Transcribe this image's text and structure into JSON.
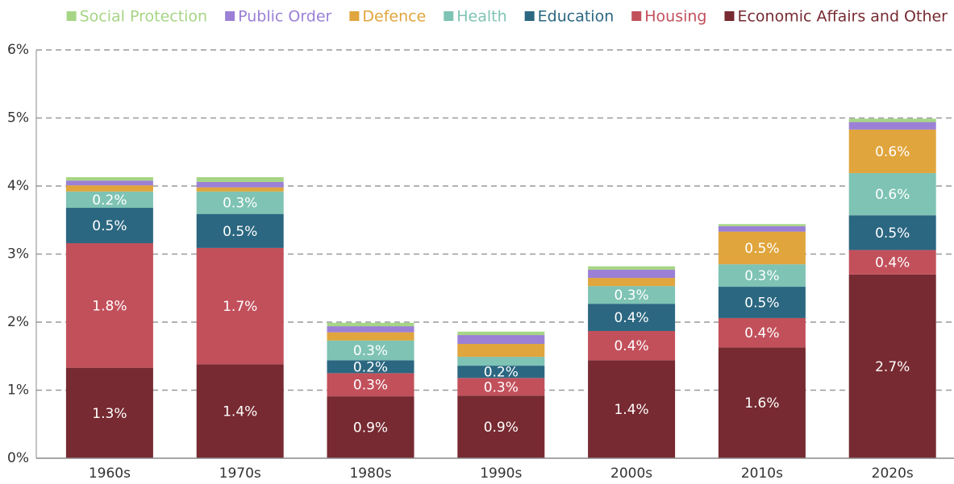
{
  "chart_data": {
    "type": "stacked_bar",
    "categories": [
      "1960s",
      "1970s",
      "1980s",
      "1990s",
      "2000s",
      "2010s",
      "2020s"
    ],
    "series": [
      {
        "name": "Economic Affairs and Other",
        "color": "#772a31",
        "values": [
          1.33,
          1.38,
          0.91,
          0.92,
          1.44,
          1.63,
          2.7
        ],
        "value_labels": [
          "1.3%",
          "1.4%",
          "0.9%",
          "0.9%",
          "1.4%",
          "1.6%",
          "2.7%"
        ]
      },
      {
        "name": "Housing",
        "color": "#c2505b",
        "values": [
          1.83,
          1.71,
          0.34,
          0.26,
          0.43,
          0.43,
          0.36
        ],
        "value_labels": [
          "1.8%",
          "1.7%",
          "0.3%",
          "0.3%",
          "0.4%",
          "0.4%",
          "0.4%"
        ]
      },
      {
        "name": "Education",
        "color": "#2b6781",
        "values": [
          0.52,
          0.5,
          0.19,
          0.18,
          0.4,
          0.46,
          0.51
        ],
        "value_labels": [
          "0.5%",
          "0.5%",
          "0.2%",
          "0.2%",
          "0.4%",
          "0.5%",
          "0.5%"
        ]
      },
      {
        "name": "Health",
        "color": "#7ec3b3",
        "values": [
          0.24,
          0.33,
          0.29,
          0.13,
          0.26,
          0.33,
          0.62
        ],
        "value_labels": [
          "0.2%",
          "0.3%",
          "0.3%",
          null,
          "0.3%",
          "0.3%",
          "0.6%"
        ]
      },
      {
        "name": "Defence",
        "color": "#e0a53c",
        "values": [
          0.09,
          0.06,
          0.12,
          0.19,
          0.12,
          0.48,
          0.64
        ],
        "value_labels": [
          null,
          null,
          null,
          null,
          null,
          "0.5%",
          "0.6%"
        ]
      },
      {
        "name": "Public Order",
        "color": "#9b80d6",
        "values": [
          0.07,
          0.08,
          0.09,
          0.13,
          0.12,
          0.08,
          0.11
        ],
        "value_labels": [
          null,
          null,
          null,
          null,
          null,
          null,
          null
        ]
      },
      {
        "name": "Social Protection",
        "color": "#a6d585",
        "values": [
          0.05,
          0.07,
          0.05,
          0.05,
          0.05,
          0.03,
          0.05
        ],
        "value_labels": [
          null,
          null,
          null,
          null,
          null,
          null,
          null
        ]
      }
    ],
    "legend_order": [
      6,
      5,
      4,
      3,
      2,
      1,
      0
    ],
    "ylim": [
      0,
      6
    ],
    "yticks": [
      {
        "value": 0,
        "label": "0%"
      },
      {
        "value": 1,
        "label": "1%"
      },
      {
        "value": 2,
        "label": "2%"
      },
      {
        "value": 3,
        "label": "3%"
      },
      {
        "value": 4,
        "label": "4%"
      },
      {
        "value": 5,
        "label": "5%"
      },
      {
        "value": 6,
        "label": "6%"
      }
    ],
    "grid": true
  }
}
